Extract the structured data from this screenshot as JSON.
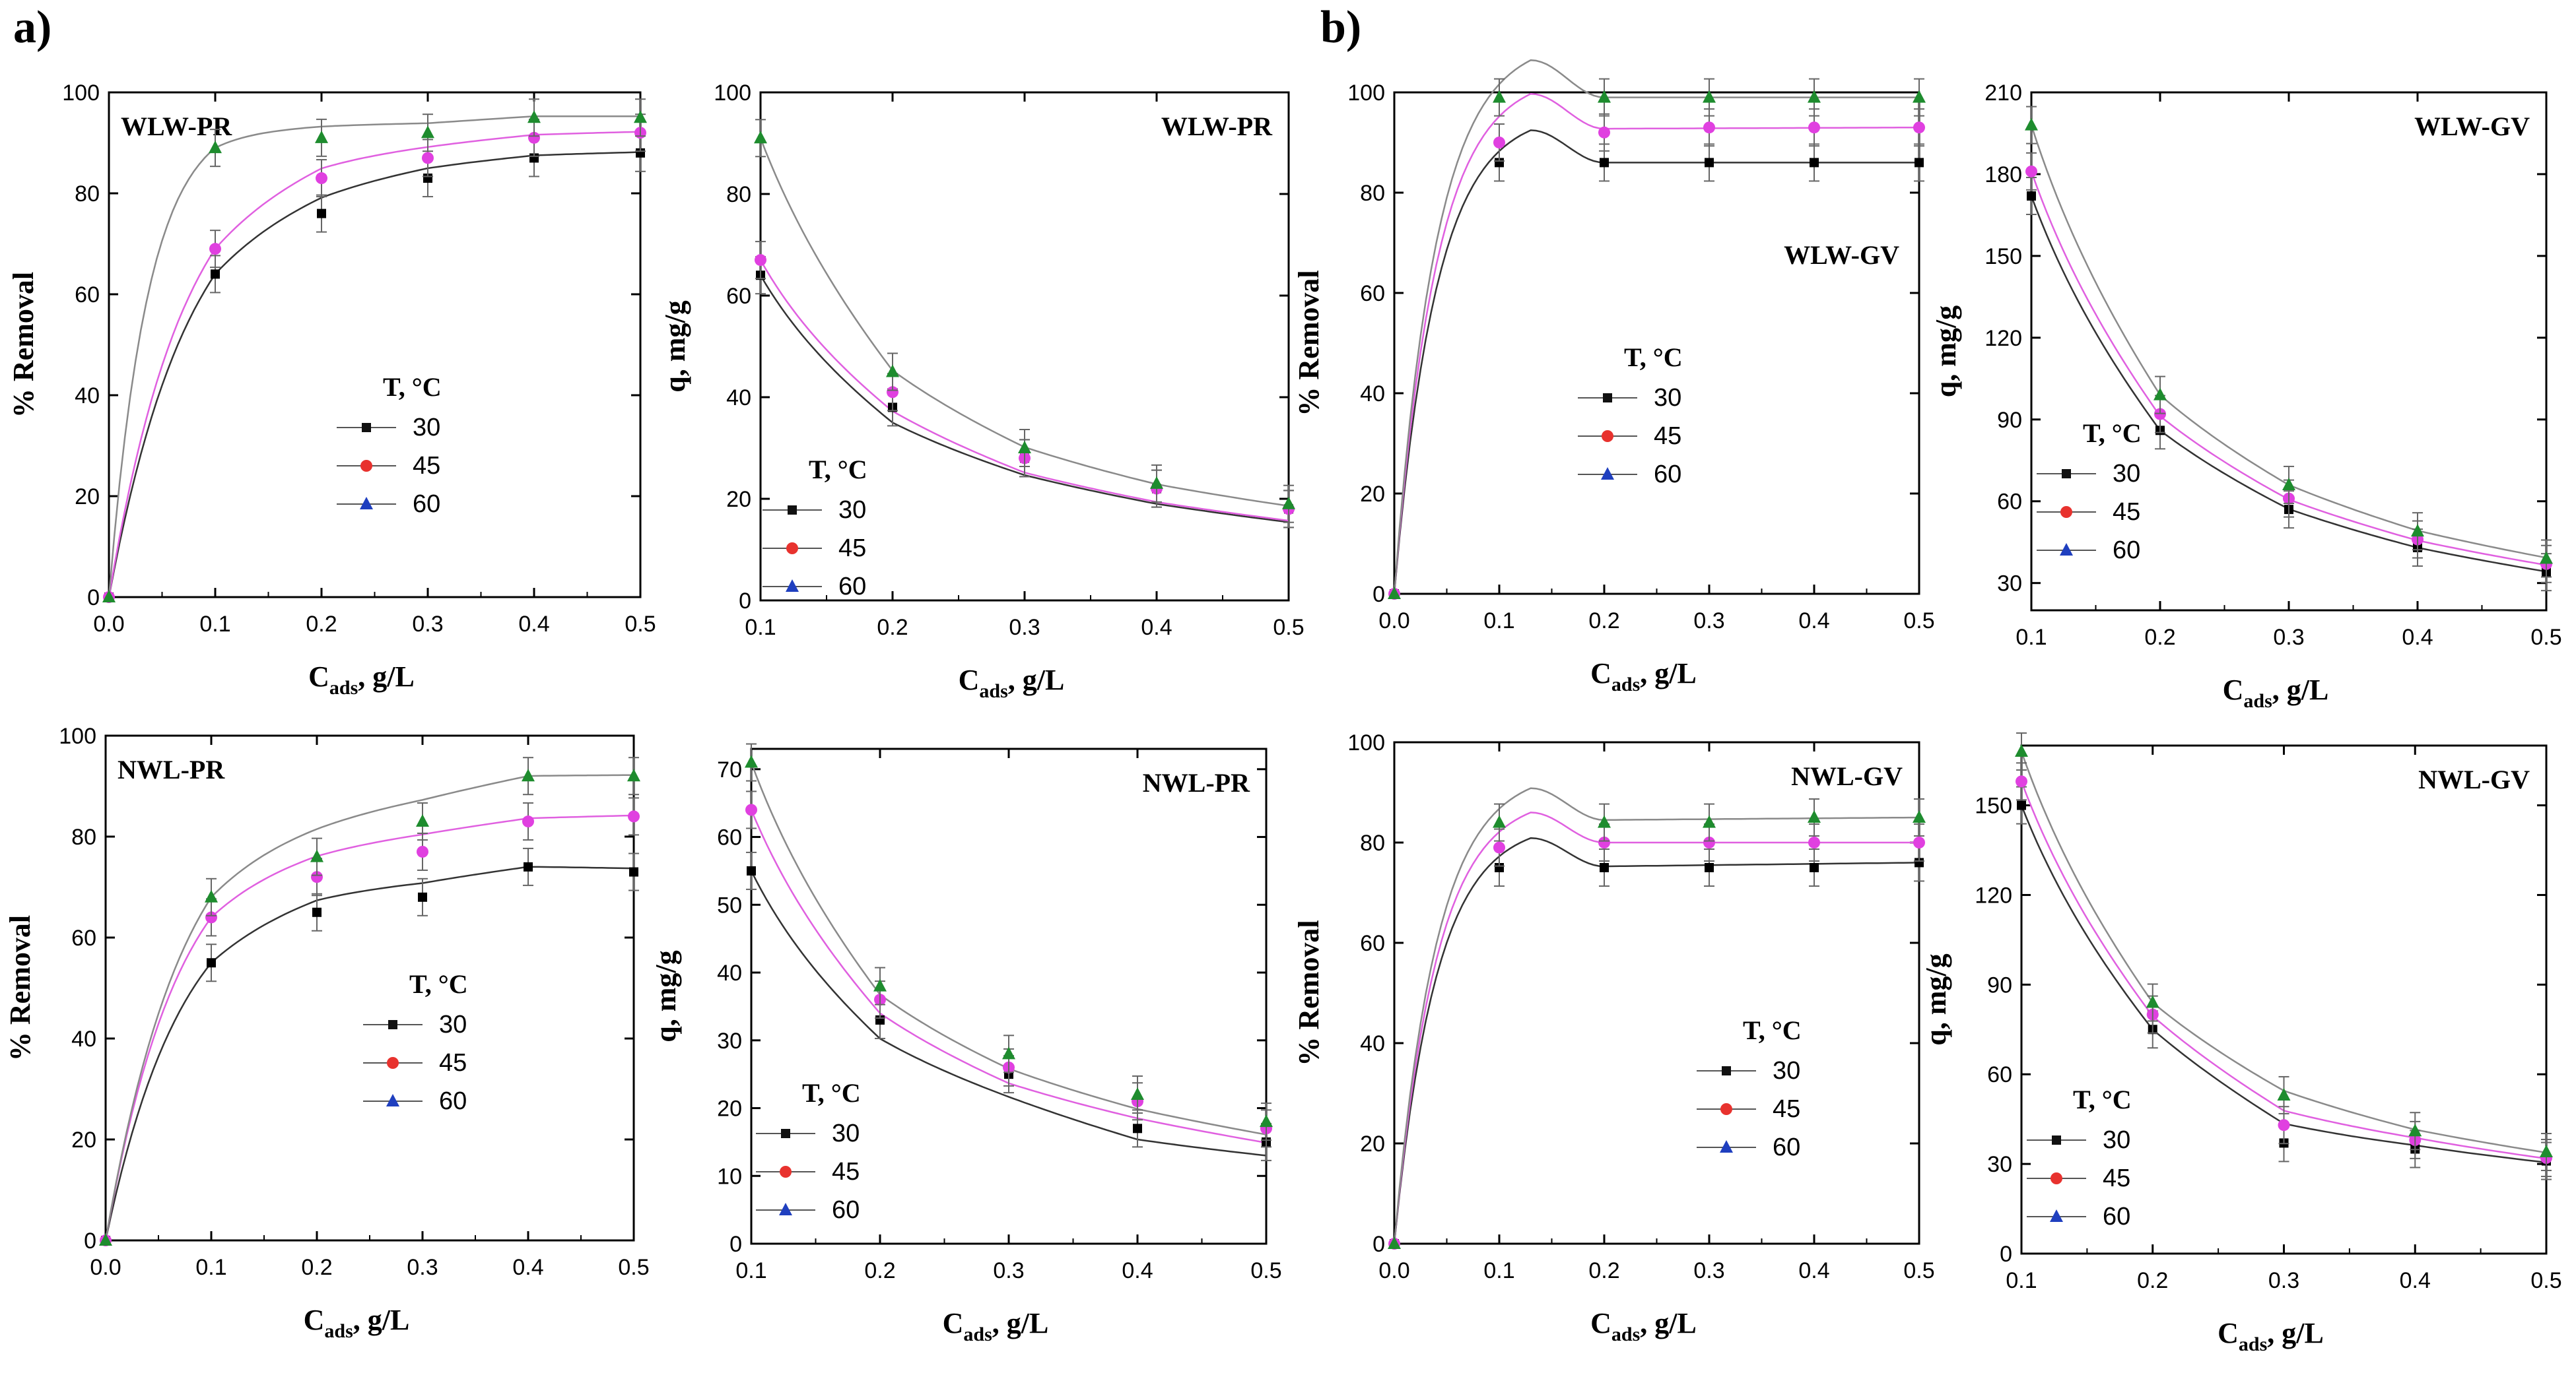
{
  "panel_labels": {
    "a": "a)",
    "b": "b)"
  },
  "legend": {
    "title": "T, °C",
    "entries": [
      "30",
      "45",
      "60"
    ]
  },
  "colors": {
    "s30": "#111111",
    "s45": "#e8322e",
    "s60": "#1f3fbf",
    "m30": "#000000",
    "m45": "#e040e0",
    "m60": "#1e8c2e",
    "line30": "#333333",
    "line45": "#e060e0",
    "line60": "#8a8a8a",
    "axis": "#000000"
  },
  "chart_data": [
    {
      "id": "a-top-left",
      "type": "scatter",
      "title": "WLW-PR",
      "xlabel": "C",
      "xlabel_sub": "ads",
      "xlabel_tail": ", g/L",
      "ylabel": "% Removal",
      "xlim": [
        0,
        0.5
      ],
      "ylim": [
        0,
        100
      ],
      "xticks": [
        "0.0",
        "0.1",
        "0.2",
        "0.3",
        "0.4",
        "0.5"
      ],
      "yticks": [
        "0",
        "20",
        "40",
        "60",
        "80",
        "100"
      ],
      "x": [
        0,
        0.1,
        0.2,
        0.3,
        0.4,
        0.5
      ],
      "series": [
        {
          "name": "30",
          "values": [
            0,
            64,
            76,
            83,
            87,
            88
          ]
        },
        {
          "name": "45",
          "values": [
            0,
            69,
            83,
            87,
            91,
            92
          ]
        },
        {
          "name": "60",
          "values": [
            0,
            89,
            91,
            92,
            95,
            95
          ]
        }
      ]
    },
    {
      "id": "a-top-right",
      "type": "scatter",
      "title": "WLW-PR",
      "xlabel": "C",
      "xlabel_sub": "ads",
      "xlabel_tail": ", g/L",
      "ylabel": "q, mg/g",
      "xlim": [
        0.1,
        0.5
      ],
      "ylim": [
        0,
        100
      ],
      "xticks": [
        "0.1",
        "0.2",
        "0.3",
        "0.4",
        "0.5"
      ],
      "yticks": [
        "0",
        "20",
        "40",
        "60",
        "80",
        "100"
      ],
      "x": [
        0.1,
        0.2,
        0.3,
        0.4,
        0.5
      ],
      "series": [
        {
          "name": "30",
          "values": [
            64,
            38,
            28,
            22,
            18
          ]
        },
        {
          "name": "45",
          "values": [
            67,
            41,
            28,
            22,
            18
          ]
        },
        {
          "name": "60",
          "values": [
            91,
            45,
            30,
            23,
            19
          ]
        }
      ]
    },
    {
      "id": "b-top-left",
      "type": "scatter",
      "title": "WLW-GV",
      "xlabel": "C",
      "xlabel_sub": "ads",
      "xlabel_tail": ", g/L",
      "ylabel": "% Removal",
      "xlim": [
        0,
        0.5
      ],
      "ylim": [
        0,
        100
      ],
      "xticks": [
        "0.0",
        "0.1",
        "0.2",
        "0.3",
        "0.4",
        "0.5"
      ],
      "yticks": [
        "0",
        "20",
        "40",
        "60",
        "80",
        "100"
      ],
      "x": [
        0,
        0.1,
        0.2,
        0.3,
        0.4,
        0.5
      ],
      "series": [
        {
          "name": "30",
          "values": [
            0,
            86,
            86,
            86,
            86,
            86
          ]
        },
        {
          "name": "45",
          "values": [
            0,
            90,
            92,
            93,
            93,
            93
          ]
        },
        {
          "name": "60",
          "values": [
            0,
            99,
            99,
            99,
            99,
            99
          ]
        }
      ]
    },
    {
      "id": "b-top-right",
      "type": "scatter",
      "title": "WLW-GV",
      "xlabel": "C",
      "xlabel_sub": "ads",
      "xlabel_tail": ", g/L",
      "ylabel": "q, mg/g",
      "xlim": [
        0.1,
        0.5
      ],
      "ylim": [
        20,
        210
      ],
      "xticks": [
        "0.1",
        "0.2",
        "0.3",
        "0.4",
        "0.5"
      ],
      "yticks": [
        "30",
        "60",
        "90",
        "120",
        "150",
        "180",
        "210"
      ],
      "x": [
        0.1,
        0.2,
        0.3,
        0.4,
        0.5
      ],
      "series": [
        {
          "name": "30",
          "values": [
            172,
            86,
            57,
            43,
            34
          ]
        },
        {
          "name": "45",
          "values": [
            181,
            92,
            61,
            46,
            37
          ]
        },
        {
          "name": "60",
          "values": [
            198,
            99,
            66,
            49,
            39
          ]
        }
      ]
    },
    {
      "id": "a-bottom-left",
      "type": "scatter",
      "title": "NWL-PR",
      "xlabel": "C",
      "xlabel_sub": "ads",
      "xlabel_tail": ", g/L",
      "ylabel": "% Removal",
      "xlim": [
        0,
        0.5
      ],
      "ylim": [
        0,
        100
      ],
      "xticks": [
        "0.0",
        "0.1",
        "0.2",
        "0.3",
        "0.4",
        "0.5"
      ],
      "yticks": [
        "0",
        "20",
        "40",
        "60",
        "80",
        "100"
      ],
      "x": [
        0,
        0.1,
        0.2,
        0.3,
        0.4,
        0.5
      ],
      "series": [
        {
          "name": "30",
          "values": [
            0,
            55,
            65,
            68,
            74,
            73
          ]
        },
        {
          "name": "45",
          "values": [
            0,
            64,
            72,
            77,
            83,
            84
          ]
        },
        {
          "name": "60",
          "values": [
            0,
            68,
            76,
            83,
            92,
            92
          ]
        }
      ]
    },
    {
      "id": "a-bottom-right",
      "type": "scatter",
      "title": "NWL-PR",
      "xlabel": "C",
      "xlabel_sub": "ads",
      "xlabel_tail": ", g/L",
      "ylabel": "q, mg/g",
      "xlim": [
        0.1,
        0.5
      ],
      "ylim": [
        0,
        73
      ],
      "xticks": [
        "0.1",
        "0.2",
        "0.3",
        "0.4",
        "0.5"
      ],
      "yticks": [
        "0",
        "10",
        "20",
        "30",
        "40",
        "50",
        "60",
        "70"
      ],
      "x": [
        0.1,
        0.2,
        0.3,
        0.4,
        0.5
      ],
      "series": [
        {
          "name": "30",
          "values": [
            55,
            33,
            25,
            17,
            15
          ]
        },
        {
          "name": "45",
          "values": [
            64,
            36,
            26,
            21,
            17
          ]
        },
        {
          "name": "60",
          "values": [
            71,
            38,
            28,
            22,
            18
          ]
        }
      ]
    },
    {
      "id": "b-bottom-left",
      "type": "scatter",
      "title": "NWL-GV",
      "xlabel": "C",
      "xlabel_sub": "ads",
      "xlabel_tail": ", g/L",
      "ylabel": "% Removal",
      "xlim": [
        0,
        0.5
      ],
      "ylim": [
        0,
        100
      ],
      "xticks": [
        "0.0",
        "0.1",
        "0.2",
        "0.3",
        "0.4",
        "0.5"
      ],
      "yticks": [
        "0",
        "20",
        "40",
        "60",
        "80",
        "100"
      ],
      "x": [
        0,
        0.1,
        0.2,
        0.3,
        0.4,
        0.5
      ],
      "series": [
        {
          "name": "30",
          "values": [
            0,
            75,
            75,
            75,
            75,
            76
          ]
        },
        {
          "name": "45",
          "values": [
            0,
            79,
            80,
            80,
            80,
            80
          ]
        },
        {
          "name": "60",
          "values": [
            0,
            84,
            84,
            84,
            85,
            85
          ]
        }
      ]
    },
    {
      "id": "b-bottom-right",
      "type": "scatter",
      "title": "NWL-GV",
      "xlabel": "C",
      "xlabel_sub": "ads",
      "xlabel_tail": ", g/L",
      "ylabel": "q, mg/g",
      "xlim": [
        0.1,
        0.5
      ],
      "ylim": [
        0,
        170
      ],
      "xticks": [
        "0.1",
        "0.2",
        "0.3",
        "0.4",
        "0.5"
      ],
      "yticks": [
        "0",
        "30",
        "60",
        "90",
        "120",
        "150"
      ],
      "x": [
        0.1,
        0.2,
        0.3,
        0.4,
        0.5
      ],
      "series": [
        {
          "name": "30",
          "values": [
            150,
            75,
            37,
            35,
            31
          ]
        },
        {
          "name": "45",
          "values": [
            158,
            80,
            43,
            38,
            32
          ]
        },
        {
          "name": "60",
          "values": [
            168,
            84,
            53,
            41,
            34
          ]
        }
      ]
    }
  ]
}
